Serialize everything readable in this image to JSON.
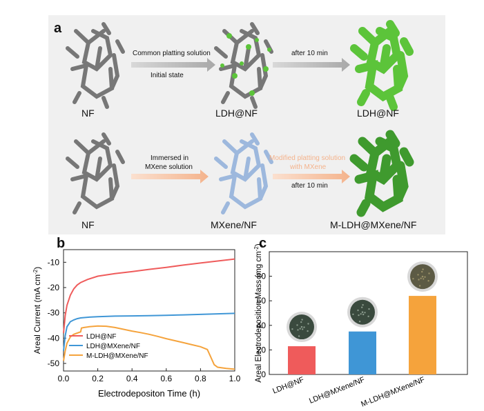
{
  "panel_a": {
    "label": "a",
    "row1": {
      "start_label": "NF",
      "arrow1_text_top": "Common platting solution",
      "arrow1_text_bottom": "Initial state",
      "mid_label": "LDH@NF",
      "arrow2_text": "after 10 min",
      "end_label": "LDH@NF"
    },
    "row2": {
      "start_label": "NF",
      "arrow1_text_top": "Immersed in",
      "arrow1_text_top2": "MXene solution",
      "mid_label": "MXene/NF",
      "arrow2_text_top": "Modified platting solution",
      "arrow2_text_top2": "with MXene",
      "arrow2_text_bottom": "after 10 min",
      "end_label": "M-LDH@MXene/NF"
    },
    "colors": {
      "grey_frame": "#7a7a7a",
      "green": "#5cc43a",
      "dark_green": "#3a8f2a",
      "blue_frame": "#9db8dd",
      "grey_arrow": "#b8b8b8",
      "orange_arrow": "#f6c1a0"
    }
  },
  "chart_data": [
    {
      "type": "line",
      "panel_label": "b",
      "xlabel": "Electrodepositon Time (h)",
      "ylabel": "Areal Current (mA cm",
      "ylabel_sup": "-2",
      "ylabel_end": ")",
      "xlim": [
        0.0,
        1.0
      ],
      "ylim": [
        -53,
        -5
      ],
      "xticks": [
        0.0,
        0.2,
        0.4,
        0.6,
        0.8,
        1.0
      ],
      "xtick_labels": [
        "0.0",
        "0.2",
        "0.4",
        "0.6",
        "0.8",
        "1.0"
      ],
      "yticks": [
        -50,
        -40,
        -30,
        -20,
        -10
      ],
      "ytick_labels": [
        "-50",
        "-40",
        "-30",
        "-20",
        "-10"
      ],
      "legend_position": "bottom-left",
      "series": [
        {
          "name": "LDH@NF",
          "color": "#ef5b5b",
          "x": [
            0.0,
            0.01,
            0.02,
            0.04,
            0.06,
            0.08,
            0.1,
            0.14,
            0.2,
            0.3,
            0.4,
            0.5,
            0.6,
            0.7,
            0.8,
            0.9,
            1.0
          ],
          "y": [
            -38,
            -31,
            -27,
            -23,
            -20.5,
            -19,
            -18,
            -16.8,
            -15.5,
            -14.5,
            -13.7,
            -12.8,
            -12.0,
            -11.1,
            -10.3,
            -9.5,
            -8.7
          ]
        },
        {
          "name": "LDH@MXene/NF",
          "color": "#3f96d6",
          "x": [
            0.0,
            0.01,
            0.02,
            0.04,
            0.06,
            0.08,
            0.1,
            0.15,
            0.2,
            0.3,
            0.4,
            0.5,
            0.6,
            0.7,
            0.8,
            0.9,
            1.0
          ],
          "y": [
            -45,
            -39,
            -35.5,
            -33.5,
            -32.8,
            -32.3,
            -32.0,
            -31.7,
            -31.5,
            -31.3,
            -31.2,
            -31.1,
            -31.0,
            -30.8,
            -30.6,
            -30.4,
            -30.2
          ]
        },
        {
          "name": "M-LDH@MXene/NF",
          "color": "#f5a33c",
          "x": [
            0.0,
            0.01,
            0.02,
            0.04,
            0.06,
            0.08,
            0.1,
            0.105,
            0.12,
            0.15,
            0.2,
            0.25,
            0.3,
            0.35,
            0.4,
            0.45,
            0.5,
            0.55,
            0.6,
            0.65,
            0.7,
            0.75,
            0.8,
            0.84,
            0.86,
            0.88,
            0.9,
            0.95,
            1.0
          ],
          "y": [
            -49,
            -45,
            -42,
            -39.5,
            -38.5,
            -38,
            -37.5,
            -36,
            -35.8,
            -35.5,
            -35.2,
            -35.3,
            -35.8,
            -36.5,
            -37.2,
            -37.8,
            -38.5,
            -39.3,
            -40.2,
            -41.0,
            -41.8,
            -42.6,
            -43.4,
            -44.5,
            -47.5,
            -50.5,
            -51.5,
            -52.0,
            -52.3
          ]
        }
      ]
    },
    {
      "type": "bar",
      "panel_label": "c",
      "ylabel": "Areal Electrodeposition Mass (mg cm",
      "ylabel_sup": "-2",
      "ylabel_end": ")",
      "categories": [
        "LDH@NF",
        "LDH@MXene/NF",
        "M-LDH@MXene/NF"
      ],
      "values": [
        23,
        35,
        64
      ],
      "colors": [
        "#ef5b5b",
        "#3f96d6",
        "#f5a33c"
      ],
      "ylim": [
        0,
        100
      ],
      "yticks": [
        0,
        20,
        40,
        60,
        80
      ],
      "ytick_labels": [
        "0",
        "20",
        "40",
        "60",
        "80"
      ],
      "inset_icons": [
        "ldh-nf-sample-photo-icon",
        "ldh-mxene-nf-sample-photo-icon",
        "m-ldh-mxene-nf-sample-photo-icon"
      ]
    }
  ]
}
